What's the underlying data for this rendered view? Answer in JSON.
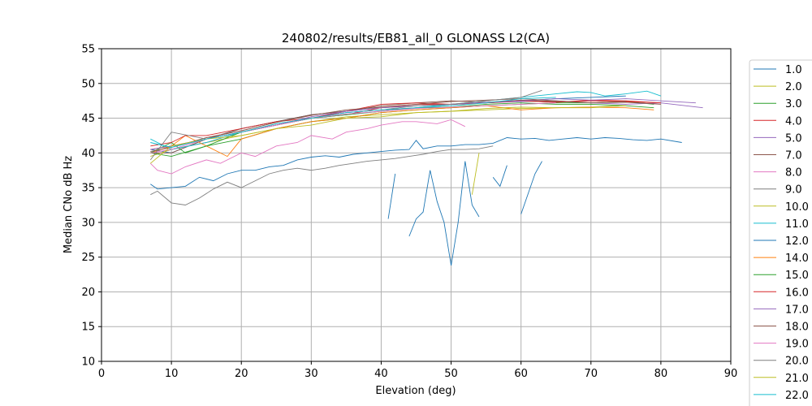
{
  "chart_data": {
    "type": "line",
    "title": "240802/results/EB81_all_0 GLONASS L2(CA)",
    "xlabel": "Elevation (deg)",
    "ylabel": "Median CNo dB Hz",
    "xlim": [
      0,
      90
    ],
    "ylim": [
      10,
      55
    ],
    "xticks": [
      0,
      10,
      20,
      30,
      40,
      50,
      60,
      70,
      80,
      90
    ],
    "yticks": [
      10,
      15,
      20,
      25,
      30,
      35,
      40,
      45,
      50,
      55
    ],
    "grid": true,
    "legend_position": "outside-right",
    "series": [
      {
        "name": "1.0",
        "color": "#1f77b4",
        "x": [
          7,
          10,
          15,
          20,
          25,
          30,
          35,
          40,
          45,
          50,
          55,
          60,
          65,
          70,
          75
        ],
        "y": [
          40.5,
          40,
          42,
          43.5,
          44.5,
          45.5,
          46,
          46.5,
          46.8,
          47,
          47.2,
          47.5,
          47.8,
          48,
          48.2
        ]
      },
      {
        "name": "2.0",
        "color": "#bcbd22",
        "x": [
          7,
          10,
          15,
          20,
          25,
          30,
          35,
          40,
          45,
          50,
          55,
          60,
          65,
          70,
          75
        ],
        "y": [
          39.5,
          40.5,
          41.5,
          42.5,
          43.5,
          44.5,
          45.2,
          45.5,
          45.8,
          46,
          46.2,
          46.4,
          46.5,
          46.6,
          46.8
        ]
      },
      {
        "name": "3.0",
        "color": "#2ca02c",
        "x": [
          7,
          10,
          15,
          20,
          25,
          30,
          35,
          40,
          45,
          50,
          55,
          60,
          65,
          70,
          75,
          79
        ],
        "y": [
          40,
          39.5,
          41,
          42,
          43.5,
          44.5,
          45,
          45.8,
          46.2,
          46.5,
          46.8,
          47,
          47.2,
          47.2,
          47.4,
          47
        ]
      },
      {
        "name": "4.0",
        "color": "#d62728",
        "x": [
          7,
          10,
          15,
          20,
          25,
          30,
          35,
          40,
          45,
          50,
          55,
          60,
          65,
          70,
          75,
          80
        ],
        "y": [
          40.5,
          41,
          42,
          43,
          44,
          45,
          45.5,
          46.5,
          47,
          47,
          47.2,
          47.5,
          47.3,
          47.6,
          47.5,
          47.2
        ]
      },
      {
        "name": "5.0",
        "color": "#9467bd",
        "x": [
          7,
          10,
          15,
          20,
          25,
          30,
          35,
          40,
          45,
          50,
          55,
          60,
          65,
          70,
          75,
          80,
          86
        ],
        "y": [
          40,
          40.5,
          41.5,
          43,
          44,
          45,
          45.8,
          46.2,
          46.5,
          47,
          47.2,
          47.4,
          47.5,
          47.2,
          47,
          47.2,
          46.5
        ]
      },
      {
        "name": "7.0",
        "color": "#8c564b",
        "x": [
          7,
          10,
          15,
          20,
          25,
          30,
          35,
          40,
          45,
          50,
          55,
          60,
          65,
          70,
          75,
          80
        ],
        "y": [
          40,
          40,
          42,
          43.5,
          44.5,
          45.5,
          46,
          46.8,
          47.2,
          47.5,
          47.3,
          47.6,
          47.4,
          47.2,
          47.3,
          47
        ]
      },
      {
        "name": "8.0",
        "color": "#e377c2",
        "x": [
          7,
          8,
          10,
          12,
          15,
          17,
          20,
          22,
          25,
          28,
          30,
          33,
          35,
          38,
          40,
          43,
          45,
          48,
          50,
          52
        ],
        "y": [
          38.5,
          37.5,
          37,
          38,
          39,
          38.5,
          40,
          39.5,
          41,
          41.5,
          42.5,
          42,
          43,
          43.5,
          44,
          44.5,
          44.5,
          44.2,
          44.8,
          43.8
        ]
      },
      {
        "name": "9.0",
        "color": "#7f7f7f",
        "x": [
          7,
          8,
          10,
          12,
          14,
          16,
          18,
          20,
          22,
          24,
          26,
          28,
          30,
          32,
          34,
          36,
          38,
          40,
          42,
          44,
          46,
          48,
          50,
          52,
          54,
          56
        ],
        "y": [
          34,
          34.5,
          32.8,
          32.5,
          33.5,
          34.8,
          35.8,
          35,
          36,
          37,
          37.5,
          37.8,
          37.5,
          37.8,
          38.2,
          38.5,
          38.8,
          39,
          39.2,
          39.5,
          39.8,
          40.2,
          40.5,
          40.5,
          40.6,
          41
        ]
      },
      {
        "name": "10.0",
        "color": "#bcbd22",
        "x": [
          53,
          54
        ],
        "y": [
          34,
          40
        ]
      },
      {
        "name": "11.0",
        "color": "#17becf",
        "x": [
          7,
          10,
          15,
          20,
          25,
          30,
          35,
          40,
          45,
          50,
          55,
          60,
          65,
          68,
          70,
          72,
          75,
          78,
          80
        ],
        "y": [
          42,
          40.5,
          41.5,
          43,
          44,
          45,
          45.5,
          46,
          46.5,
          47,
          47.5,
          48,
          48.5,
          48.8,
          48.7,
          48.2,
          48.5,
          48.9,
          48.2
        ]
      },
      {
        "name": "12.0",
        "color": "#1f77b4",
        "x": [
          7,
          8,
          10,
          12,
          14,
          16,
          18,
          20,
          22,
          24,
          26,
          28,
          30,
          32,
          34,
          36,
          38,
          40,
          42,
          44,
          45,
          46,
          48,
          50,
          52,
          54,
          56,
          58,
          60,
          62,
          64,
          66,
          68,
          70,
          72,
          74,
          76,
          78,
          80,
          83
        ],
        "y": [
          35.5,
          34.8,
          35,
          35.2,
          36.5,
          36,
          37,
          37.5,
          37.5,
          38,
          38.2,
          39,
          39.4,
          39.6,
          39.4,
          39.8,
          40,
          40.2,
          40.4,
          40.5,
          41.8,
          40.6,
          41,
          41,
          41.2,
          41.2,
          41.4,
          42.2,
          42,
          42.1,
          41.8,
          42,
          42.2,
          42,
          42.2,
          42.1,
          41.9,
          41.8,
          42,
          41.5
        ]
      },
      {
        "name": "14.0",
        "color": "#ff7f0e",
        "x": [
          7,
          10,
          12,
          15,
          18,
          20,
          25,
          30,
          35,
          40,
          45,
          50,
          55,
          60,
          65,
          70,
          75,
          79
        ],
        "y": [
          40,
          41,
          42.5,
          41,
          39.5,
          42,
          43.5,
          44.5,
          45,
          45.8,
          46.2,
          46.5,
          46.8,
          46.2,
          46.5,
          46.6,
          46.5,
          46.2
        ]
      },
      {
        "name": "15.0",
        "color": "#2ca02c",
        "x": [
          7,
          10,
          12,
          15,
          20,
          25,
          30,
          35,
          40,
          45,
          50,
          55,
          60,
          65,
          70,
          75,
          79
        ],
        "y": [
          40,
          41.5,
          40,
          41,
          43,
          44,
          45,
          45.5,
          46,
          46.5,
          46.6,
          47,
          47.2,
          47,
          47,
          46.8,
          46.5
        ]
      },
      {
        "name": "16.0",
        "color": "#d62728",
        "x": [
          7,
          10,
          12,
          15,
          20,
          25,
          30,
          35,
          40,
          45,
          50,
          55,
          60,
          65,
          70,
          75,
          80
        ],
        "y": [
          41,
          41.5,
          42.5,
          42.5,
          43.5,
          44.5,
          45,
          46,
          47,
          47.2,
          47,
          47.2,
          47.5,
          47.3,
          47.5,
          47.4,
          47.2
        ]
      },
      {
        "name": "17.0",
        "color": "#9467bd",
        "x": [
          7,
          10,
          15,
          20,
          25,
          30,
          35,
          40,
          45,
          50,
          55,
          60,
          65,
          70,
          75,
          80,
          85
        ],
        "y": [
          40.5,
          41,
          42,
          43,
          44,
          45.2,
          46,
          46.5,
          46.8,
          47,
          47.3,
          47.5,
          47.8,
          47.6,
          47.8,
          47.5,
          47.2
        ]
      },
      {
        "name": "18.0",
        "color": "#8c564b",
        "x": [
          7,
          10,
          15,
          20,
          25,
          30,
          35,
          40,
          45,
          50,
          55,
          60,
          65,
          70,
          75
        ],
        "y": [
          40.2,
          40.8,
          42.2,
          43.2,
          44.4,
          45.4,
          46.2,
          46.6,
          47,
          47.4,
          47.6,
          47.8,
          47.5,
          47.2,
          47.4
        ]
      },
      {
        "name": "19.0",
        "color": "#e377c2",
        "x": [
          7,
          10,
          15,
          20,
          25,
          30,
          35,
          40,
          45,
          50,
          55,
          60,
          65
        ],
        "y": [
          40,
          40.5,
          42,
          43,
          44,
          45,
          45.6,
          46,
          46.4,
          46.6,
          46.8,
          47,
          47.2
        ]
      },
      {
        "name": "20.0",
        "color": "#7f7f7f",
        "x": [
          7,
          10,
          15,
          20,
          25,
          30,
          35,
          40,
          45,
          50,
          55,
          60,
          63
        ],
        "y": [
          39,
          43,
          42,
          43,
          44.2,
          45,
          45.8,
          46.2,
          46.8,
          47,
          47.5,
          48,
          49
        ]
      },
      {
        "name": "21.0",
        "color": "#bcbd22",
        "x": [
          7,
          10,
          15,
          20,
          25,
          30,
          35,
          40,
          45,
          50,
          55,
          60,
          65,
          70,
          75
        ],
        "y": [
          38.5,
          41,
          42,
          42.5,
          43.5,
          44,
          45,
          45.2,
          45.8,
          46,
          46.4,
          46.6,
          46.5,
          46.5,
          46.8
        ]
      },
      {
        "name": "22.0",
        "color": "#17becf",
        "x": [
          7,
          10,
          15,
          20,
          25,
          30,
          35,
          40,
          45,
          50,
          55,
          60,
          65
        ],
        "y": [
          41.5,
          40.8,
          42,
          43,
          44.2,
          45,
          45.8,
          46.2,
          46.5,
          46.8,
          47.2,
          47.8,
          48
        ]
      },
      {
        "name": "",
        "color": "#1f77b4",
        "x": [
          41,
          42
        ],
        "y": [
          30.5,
          37
        ]
      },
      {
        "name": "",
        "color": "#1f77b4",
        "x": [
          44,
          45,
          46,
          47,
          48,
          49,
          50,
          51,
          52,
          53,
          54
        ],
        "y": [
          28,
          30.5,
          31.5,
          37.5,
          33,
          30,
          23.8,
          30,
          38.8,
          32.5,
          30.8
        ]
      },
      {
        "name": "",
        "color": "#1f77b4",
        "x": [
          56,
          57,
          58
        ],
        "y": [
          36.5,
          35.2,
          38.2
        ]
      },
      {
        "name": "",
        "color": "#1f77b4",
        "x": [
          60,
          62,
          63
        ],
        "y": [
          31.2,
          37,
          38.8
        ]
      }
    ],
    "legend_entries": [
      "1.0",
      "2.0",
      "3.0",
      "4.0",
      "5.0",
      "7.0",
      "8.0",
      "9.0",
      "10.0",
      "11.0",
      "12.0",
      "14.0",
      "15.0",
      "16.0",
      "17.0",
      "18.0",
      "19.0",
      "20.0",
      "21.0",
      "22.0"
    ],
    "legend_colors": [
      "#1f77b4",
      "#bcbd22",
      "#2ca02c",
      "#d62728",
      "#9467bd",
      "#8c564b",
      "#e377c2",
      "#7f7f7f",
      "#bcbd22",
      "#17becf",
      "#1f77b4",
      "#ff7f0e",
      "#2ca02c",
      "#d62728",
      "#9467bd",
      "#8c564b",
      "#e377c2",
      "#7f7f7f",
      "#bcbd22",
      "#17becf"
    ]
  }
}
